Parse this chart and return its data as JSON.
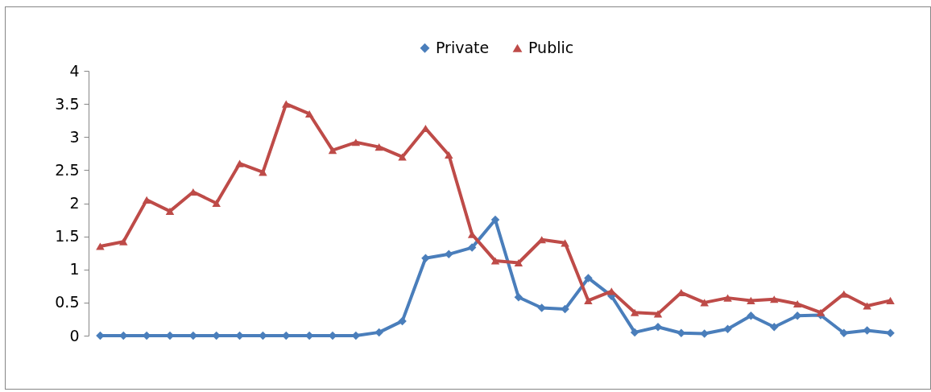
{
  "chart_data": {
    "type": "line",
    "categories": [
      null,
      null,
      null,
      null,
      null,
      null,
      null,
      null,
      null,
      null,
      null,
      null,
      null,
      null,
      null,
      null,
      null,
      null,
      null,
      null,
      null,
      null,
      null,
      null,
      null,
      null,
      null,
      null,
      null,
      null,
      null,
      null,
      null,
      null,
      null
    ],
    "series": [
      {
        "name": "Private",
        "color": "#4a7ebb",
        "marker": "diamond",
        "values": [
          0,
          0,
          0,
          0,
          0,
          0,
          0,
          0,
          0,
          0,
          0,
          0,
          0.05,
          0.22,
          1.17,
          1.23,
          1.33,
          1.75,
          0.58,
          0.42,
          0.4,
          0.87,
          0.6,
          0.05,
          0.13,
          0.04,
          0.03,
          0.1,
          0.3,
          0.13,
          0.3,
          0.31,
          0.04,
          0.08,
          0.04
        ]
      },
      {
        "name": "Public",
        "color": "#be4b48",
        "marker": "triangle",
        "values": [
          1.35,
          1.42,
          2.05,
          1.88,
          2.17,
          2.0,
          2.6,
          2.47,
          3.5,
          3.35,
          2.8,
          2.92,
          2.85,
          2.7,
          3.13,
          2.73,
          1.53,
          1.13,
          1.1,
          1.45,
          1.4,
          0.53,
          0.67,
          0.35,
          0.33,
          0.65,
          0.5,
          0.57,
          0.53,
          0.55,
          0.48,
          0.35,
          0.63,
          0.45,
          0.53
        ]
      }
    ],
    "ylim": [
      0,
      4
    ],
    "yticks": [
      0,
      0.5,
      1,
      1.5,
      2,
      2.5,
      3,
      3.5,
      4
    ],
    "grid": false,
    "legend": "top",
    "tick_labels": "y"
  }
}
